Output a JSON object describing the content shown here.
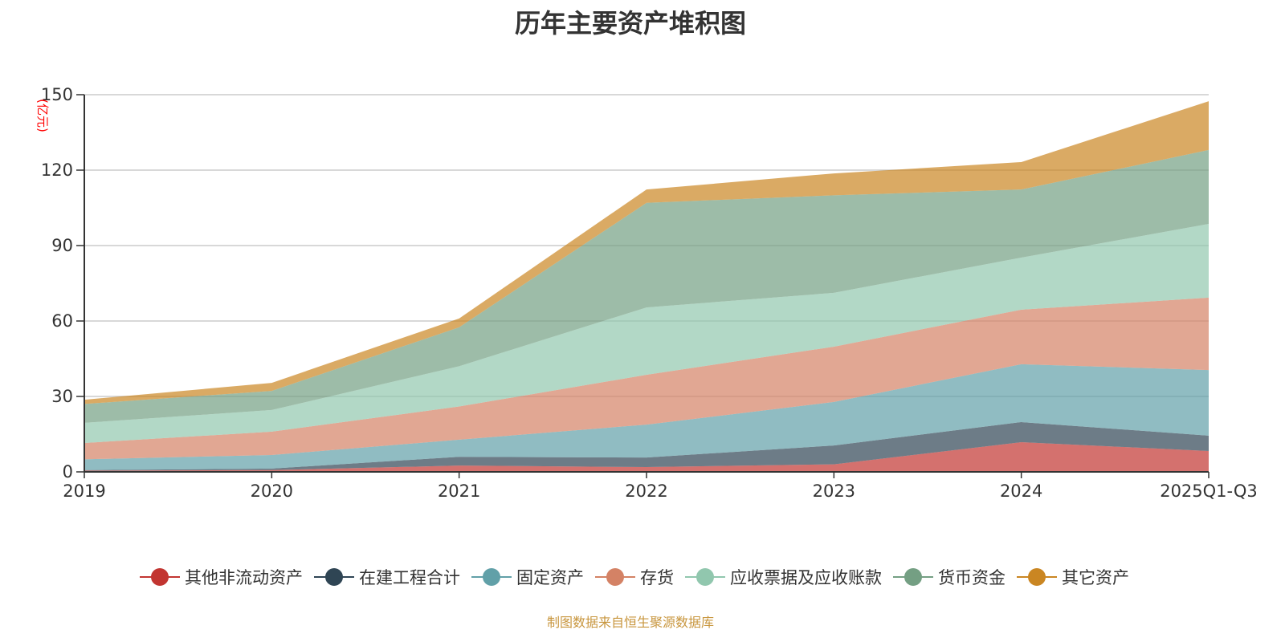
{
  "chart_data": {
    "type": "area",
    "stacked": true,
    "title": "历年主要资产堆积图",
    "ylabel": "(亿元)",
    "xlabel": "",
    "ylim": [
      0,
      150
    ],
    "yticks": [
      0,
      30,
      60,
      90,
      120,
      150
    ],
    "grid": true,
    "legend_position": "bottom",
    "categories": [
      "2019",
      "2020",
      "2021",
      "2022",
      "2023",
      "2024",
      "2025Q1-Q3"
    ],
    "series": [
      {
        "name": "其他非流动资产",
        "color": "#c23531",
        "values": [
          0.5,
          0.7,
          2.5,
          1.9,
          3.0,
          11.8,
          8.3
        ]
      },
      {
        "name": "在建工程合计",
        "color": "#2f4554",
        "values": [
          0.2,
          0.6,
          3.5,
          3.8,
          7.5,
          8.0,
          6.1
        ]
      },
      {
        "name": "固定资产",
        "color": "#61a0a8",
        "values": [
          4.3,
          5.4,
          6.8,
          13.1,
          17.3,
          23.0,
          26.1
        ]
      },
      {
        "name": "存货",
        "color": "#d48265",
        "values": [
          6.5,
          9.3,
          13.2,
          19.8,
          22.0,
          21.7,
          28.8
        ]
      },
      {
        "name": "应收票据及应收账款",
        "color": "#91c7ae",
        "values": [
          8.0,
          8.6,
          16.0,
          26.8,
          21.4,
          20.7,
          29.3
        ]
      },
      {
        "name": "货币资金",
        "color": "#749f83",
        "values": [
          7.5,
          7.6,
          15.5,
          41.6,
          38.8,
          27.1,
          29.4
        ]
      },
      {
        "name": "其它资产",
        "color": "#ca8622",
        "values": [
          1.7,
          3.2,
          3.5,
          5.3,
          8.7,
          10.9,
          19.4
        ]
      }
    ]
  },
  "source": "制图数据来自恒生聚源数据库"
}
